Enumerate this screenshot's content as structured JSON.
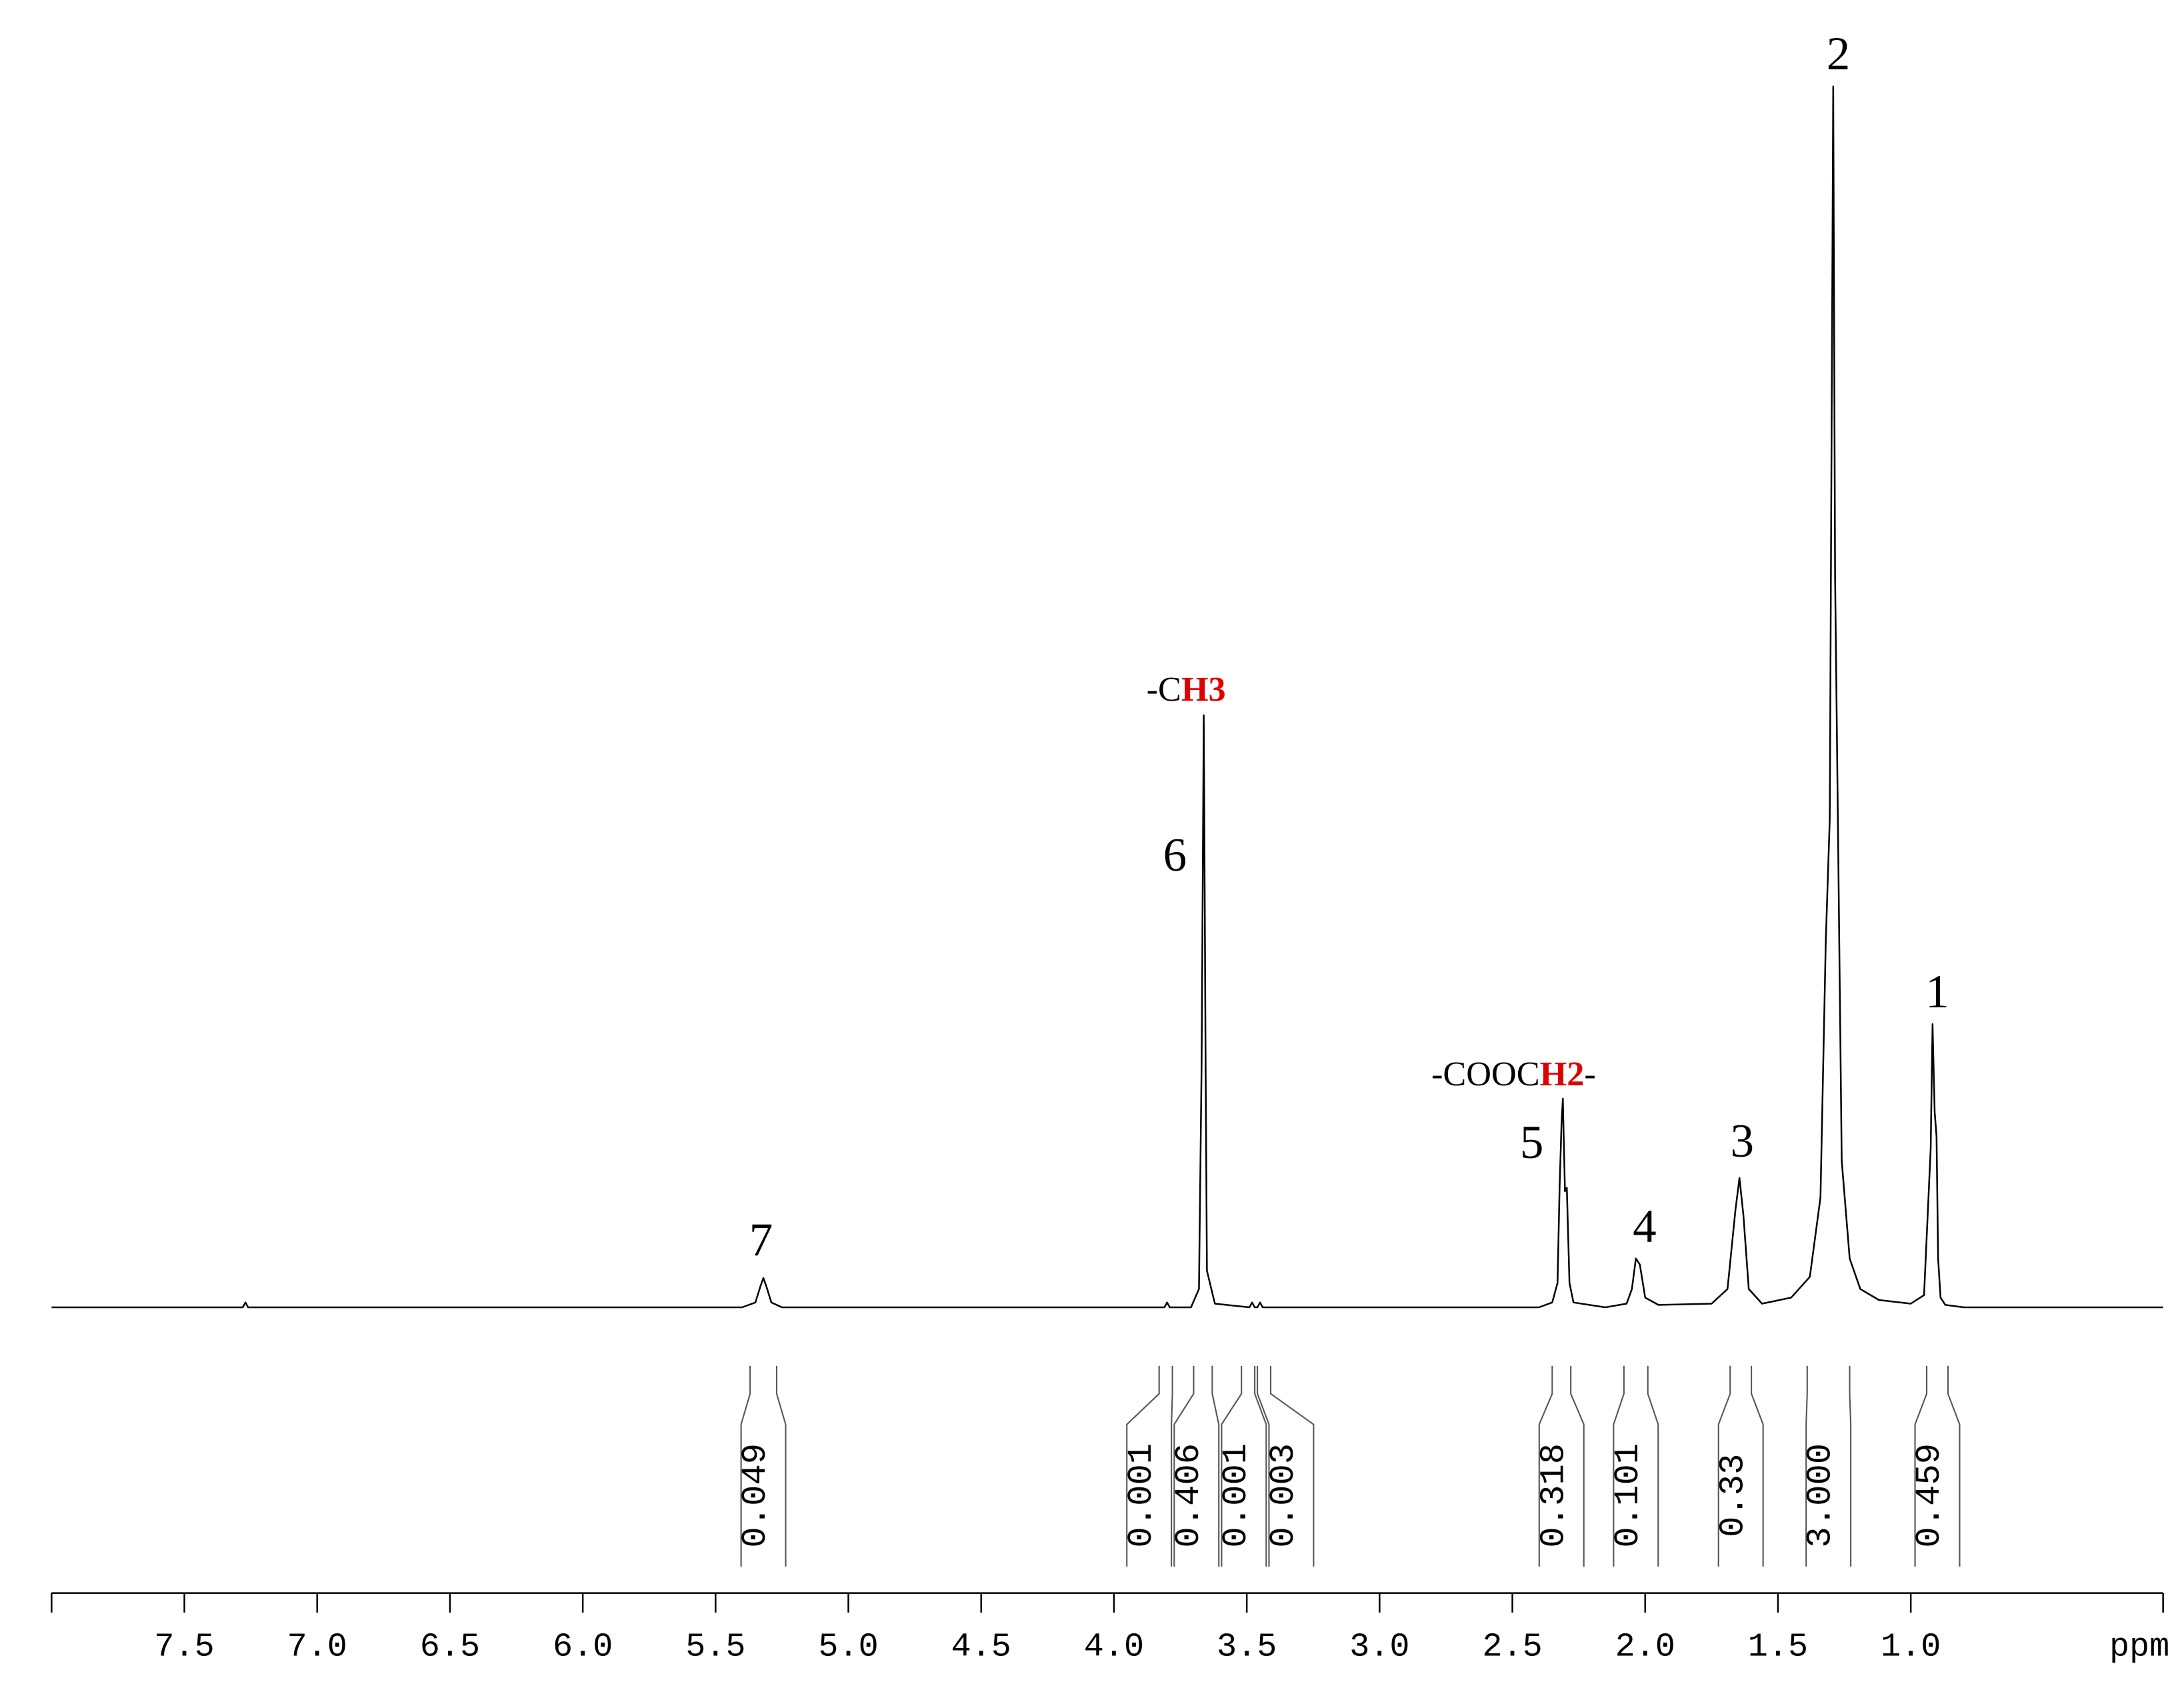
{
  "chart_data": {
    "type": "line",
    "color": "#000000",
    "xlim": [
      8.0,
      0.05
    ],
    "ylim": [
      0,
      100
    ],
    "xticks": [
      7.5,
      {
        "value": 7,
        "label": "7.0"
      },
      6.5,
      {
        "value": 6,
        "label": "6.0"
      },
      5.5,
      {
        "value": 5,
        "label": "5.0"
      },
      4.5,
      {
        "value": 4,
        "label": "4.0"
      },
      3.5,
      {
        "value": 3,
        "label": "3.0"
      },
      2.5,
      {
        "value": 2,
        "label": "2.0"
      },
      1.5,
      {
        "value": 1,
        "label": "1.0"
      }
    ],
    "xlabel": "ppm",
    "x": [
      8.0,
      7.28,
      7.27,
      7.26,
      5.4,
      5.35,
      5.33,
      5.32,
      5.31,
      5.29,
      5.25,
      4.0,
      3.81,
      3.8,
      3.79,
      3.71,
      3.68,
      3.67,
      3.662,
      3.655,
      3.65,
      3.62,
      3.49,
      3.48,
      3.47,
      3.46,
      3.45,
      3.44,
      2.4,
      2.35,
      2.33,
      2.322,
      2.315,
      2.31,
      2.302,
      2.295,
      2.285,
      2.27,
      2.15,
      2.07,
      2.05,
      2.035,
      2.02,
      2.0,
      1.95,
      1.75,
      1.69,
      1.66,
      1.645,
      1.63,
      1.61,
      1.56,
      1.45,
      1.38,
      1.34,
      1.32,
      1.305,
      1.292,
      1.285,
      1.275,
      1.26,
      1.23,
      1.19,
      1.12,
      1.0,
      0.95,
      0.925,
      0.918,
      0.91,
      0.903,
      0.897,
      0.888,
      0.87,
      0.8,
      0.5,
      0.05
    ],
    "values": [
      0,
      0,
      0.4,
      0,
      0,
      0.4,
      1.8,
      2.4,
      1.8,
      0.4,
      0,
      0,
      0,
      0.4,
      0,
      0,
      1.5,
      20,
      48.5,
      20,
      3,
      0.3,
      0,
      0.4,
      0,
      0,
      0.4,
      0,
      0,
      0.4,
      2,
      10,
      15,
      17.1,
      9.5,
      9.8,
      2,
      0.4,
      0,
      0.3,
      1.5,
      4,
      3.5,
      0.8,
      0.2,
      0.3,
      1.5,
      8,
      10.6,
      7.5,
      1.5,
      0.3,
      0.8,
      2.5,
      9,
      30,
      40,
      100,
      60,
      41,
      12,
      4,
      1.5,
      0.6,
      0.3,
      1,
      13,
      23.2,
      16,
      14,
      4,
      0.8,
      0.2,
      0,
      0,
      0
    ],
    "peak_labels": [
      "7",
      "6",
      "5",
      "4",
      "3",
      "2",
      "1"
    ],
    "assignments": [
      {
        "text": "-C",
        "highlight": "H3"
      },
      {
        "text": "-COOC",
        "highlight": "H2",
        "suffix": "-"
      }
    ],
    "highlight_color": "#e00000",
    "integrals": [
      {
        "range": [
          5.37,
          5.27
        ],
        "value": 0.049
      },
      {
        "range": [
          3.83,
          3.78
        ],
        "value": 0.001
      },
      {
        "range": [
          3.7,
          3.63
        ],
        "value": 0.406
      },
      {
        "range": [
          3.52,
          3.47
        ],
        "value": 0.001
      },
      {
        "range": [
          3.46,
          3.41
        ],
        "value": 0.003
      },
      {
        "range": [
          2.35,
          2.28
        ],
        "value": 0.318
      },
      {
        "range": [
          2.08,
          1.99
        ],
        "value": 0.101
      },
      {
        "range": [
          1.68,
          1.6
        ],
        "value": 0.33
      },
      {
        "range": [
          1.39,
          1.23
        ],
        "value": 3,
        "label": "3.000"
      },
      {
        "range": [
          0.94,
          0.86
        ],
        "value": 0.459
      }
    ]
  }
}
